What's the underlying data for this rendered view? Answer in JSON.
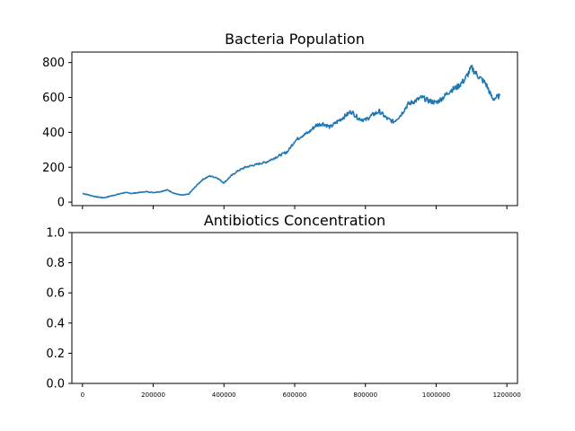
{
  "chart_data": [
    {
      "type": "line",
      "title": "Bacteria Population",
      "xlabel": "",
      "ylabel": "",
      "xlim": [
        -30000,
        1230000
      ],
      "ylim": [
        -20,
        860
      ],
      "yticks": [
        0,
        200,
        400,
        600,
        800
      ],
      "xticks": [
        0,
        200000,
        400000,
        600000,
        800000,
        1000000,
        1200000
      ],
      "x_tick_labels_shown": false,
      "grid": false,
      "color": "#1f77b4",
      "series": [
        {
          "x": [
            0,
            20000,
            40000,
            60000,
            80000,
            100000,
            120000,
            140000,
            160000,
            180000,
            200000,
            220000,
            240000,
            260000,
            280000,
            300000,
            320000,
            340000,
            360000,
            380000,
            400000,
            420000,
            440000,
            460000,
            480000,
            500000,
            520000,
            540000,
            560000,
            580000,
            600000,
            620000,
            640000,
            660000,
            680000,
            700000,
            720000,
            740000,
            760000,
            780000,
            800000,
            820000,
            840000,
            860000,
            880000,
            900000,
            920000,
            940000,
            960000,
            980000,
            1000000,
            1020000,
            1040000,
            1060000,
            1080000,
            1100000,
            1120000,
            1140000,
            1160000,
            1180000
          ],
          "values": [
            50,
            40,
            30,
            25,
            35,
            45,
            55,
            50,
            55,
            60,
            55,
            60,
            70,
            50,
            40,
            45,
            90,
            130,
            150,
            140,
            110,
            150,
            180,
            200,
            210,
            220,
            230,
            250,
            270,
            290,
            350,
            380,
            400,
            440,
            450,
            430,
            460,
            490,
            520,
            480,
            470,
            500,
            520,
            480,
            460,
            500,
            560,
            580,
            600,
            580,
            570,
            600,
            640,
            660,
            700,
            770,
            720,
            680,
            590,
            610
          ]
        }
      ]
    },
    {
      "type": "line",
      "title": "Antibiotics Concentration",
      "xlabel": "",
      "ylabel": "",
      "xlim": [
        -30000,
        1230000
      ],
      "ylim": [
        0,
        1
      ],
      "yticks": [
        0.0,
        0.2,
        0.4,
        0.6,
        0.8,
        1.0
      ],
      "ytick_labels": [
        "0.0",
        "0.2",
        "0.4",
        "0.6",
        "0.8",
        "1.0"
      ],
      "xticks": [
        0,
        200000,
        400000,
        600000,
        800000,
        1000000,
        1200000
      ],
      "xtick_labels": [
        "0",
        "200000",
        "400000",
        "600000",
        "800000",
        "1000000",
        "1200000"
      ],
      "grid": false,
      "series": []
    }
  ]
}
